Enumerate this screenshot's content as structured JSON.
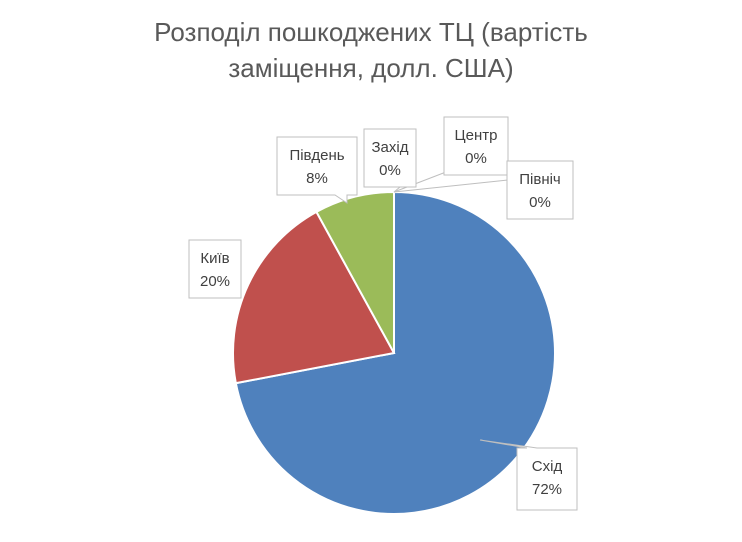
{
  "chart_data": {
    "type": "pie",
    "title_lines": [
      "Розподіл пошкоджених ТЦ (вартість",
      "заміщення, долл. США)"
    ],
    "start_angle_deg": 0,
    "direction": "clockwise",
    "legend": "none",
    "slices": [
      {
        "category": "Схід",
        "value": 72,
        "label": "72%",
        "color": "#4f81bd"
      },
      {
        "category": "Київ",
        "value": 20,
        "label": "20%",
        "color": "#c0504d"
      },
      {
        "category": "Південь",
        "value": 8,
        "label": "8%",
        "color": "#9bbb59"
      },
      {
        "category": "Захід",
        "value": 0,
        "label": "0%",
        "color": "#8064a2"
      },
      {
        "category": "Центр",
        "value": 0,
        "label": "0%",
        "color": "#4bacc6"
      },
      {
        "category": "Північ",
        "value": 0,
        "label": "0%",
        "color": "#f79646"
      }
    ],
    "slice_border_color": "#ffffff",
    "label_border_color": "#bfbfbf"
  }
}
